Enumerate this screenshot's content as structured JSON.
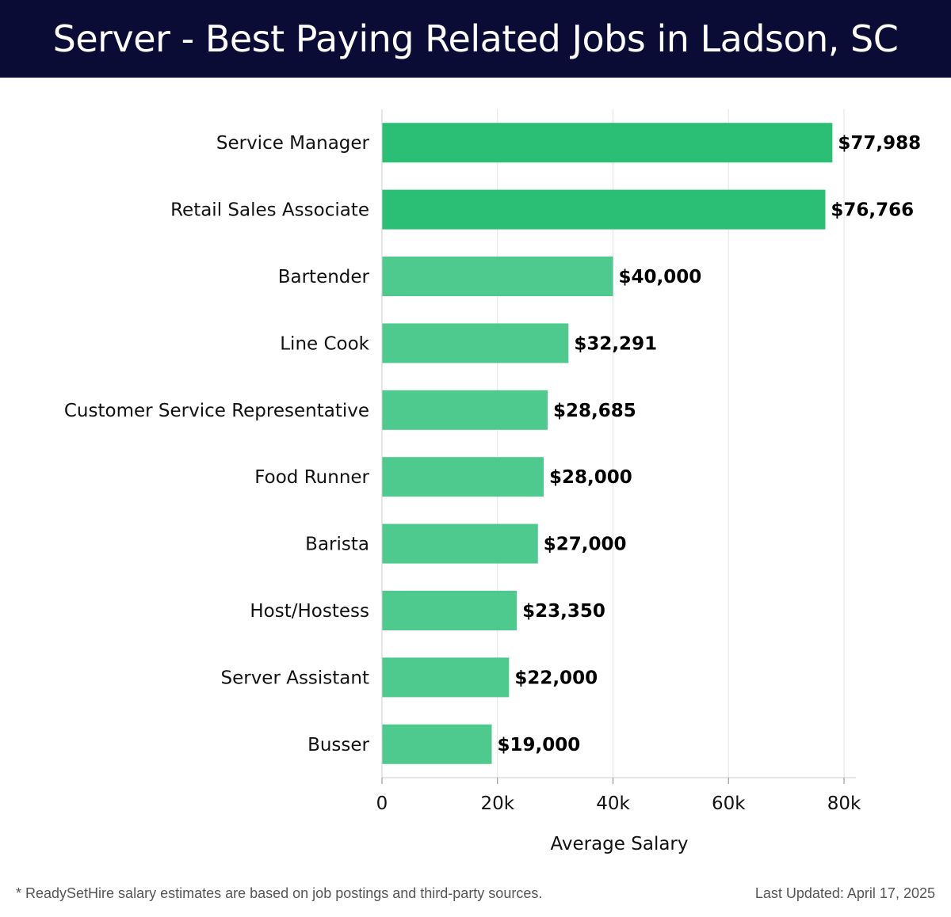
{
  "header": {
    "title": "Server - Best Paying Related Jobs in Ladson, SC"
  },
  "footer": {
    "note": "* ReadySetHire salary estimates are based on job postings and third-party sources.",
    "updated": "Last Updated: April 17, 2025"
  },
  "colors": {
    "header_bg": "#0b0c35",
    "bar_top": "#2bbf76",
    "bar_rest": "#4fca8e"
  },
  "chart_data": {
    "type": "bar",
    "orientation": "horizontal",
    "categories": [
      "Service Manager",
      "Retail Sales Associate",
      "Bartender",
      "Line Cook",
      "Customer Service Representative",
      "Food Runner",
      "Barista",
      "Host/Hostess",
      "Server Assistant",
      "Busser"
    ],
    "values": [
      77988,
      76766,
      40000,
      32291,
      28685,
      28000,
      27000,
      23350,
      22000,
      19000
    ],
    "value_labels": [
      "$77,988",
      "$76,766",
      "$40,000",
      "$32,291",
      "$28,685",
      "$28,000",
      "$27,000",
      "$23,350",
      "$22,000",
      "$19,000"
    ],
    "xlabel": "Average Salary",
    "ylabel": "",
    "xlim": [
      0,
      80000
    ],
    "xticks": [
      0,
      20000,
      40000,
      60000,
      80000
    ],
    "xtick_labels": [
      "0",
      "20k",
      "40k",
      "60k",
      "80k"
    ],
    "grid": true
  }
}
